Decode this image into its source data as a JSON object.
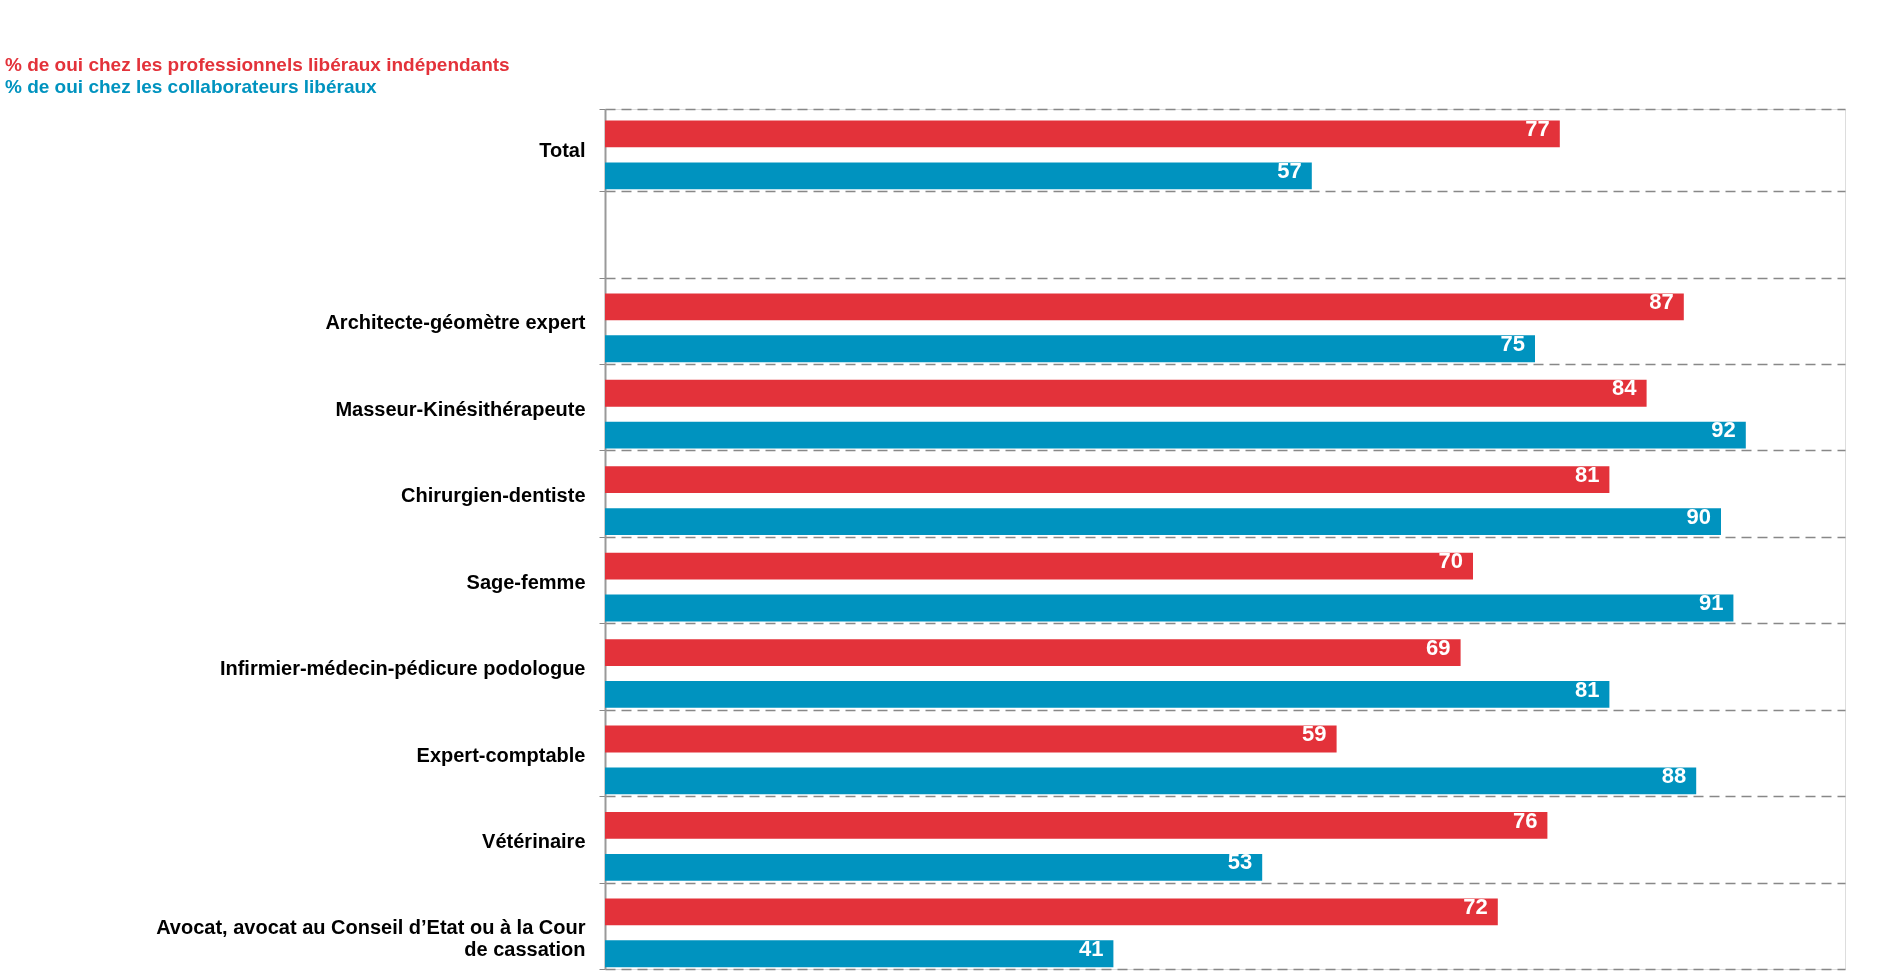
{
  "chart_data": {
    "type": "bar",
    "orientation": "horizontal",
    "categories": [
      "Total",
      null,
      "Architecte-géomètre expert",
      "Masseur-Kinésithérapeute",
      "Chirurgien-dentiste",
      "Sage-femme",
      "Infirmier-médecin-pédicure podologue",
      "Expert-comptable",
      "Vétérinaire",
      "Avocat, avocat au Conseil d’Etat ou à la Cour de cassation"
    ],
    "series": [
      {
        "name": "% de oui chez les professionnels libéraux indépendants",
        "color": "#e3323a",
        "values": [
          77,
          null,
          87,
          84,
          81,
          70,
          69,
          59,
          76,
          72
        ]
      },
      {
        "name": "% de oui chez les collaborateurs libéraux",
        "color": "#0093bf",
        "values": [
          57,
          null,
          75,
          92,
          90,
          91,
          81,
          88,
          53,
          41
        ]
      }
    ],
    "xlim": [
      0,
      100
    ],
    "data_labels": true,
    "grid": "y",
    "legend": "top left",
    "tick_labels": "y"
  }
}
